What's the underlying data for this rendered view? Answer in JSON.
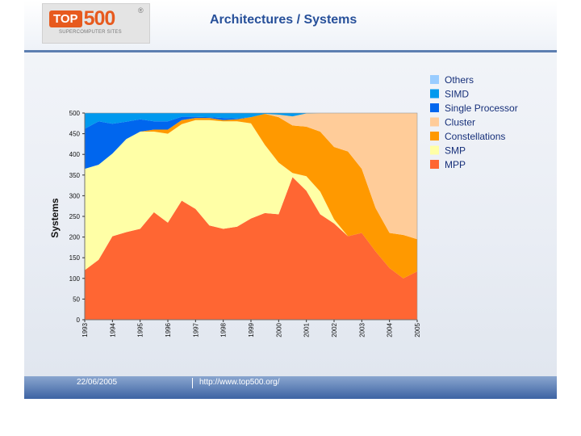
{
  "header": {
    "title": "Architectures / Systems",
    "logo": {
      "word_top": "TOP",
      "word_num": "500",
      "mark": "®",
      "subtitle": "SUPERCOMPUTER SITES"
    }
  },
  "footer": {
    "date": "22/06/2005",
    "url": "http://www.top500.org/"
  },
  "chart_data": {
    "type": "area",
    "stacked": true,
    "title": "",
    "xlabel": "",
    "ylabel": "Systems",
    "ylim": [
      0,
      500
    ],
    "yticks": [
      0,
      50,
      100,
      150,
      200,
      250,
      300,
      350,
      400,
      450,
      500
    ],
    "x": [
      1993.0,
      1993.5,
      1994.0,
      1994.5,
      1995.0,
      1995.5,
      1996.0,
      1996.5,
      1997.0,
      1997.5,
      1998.0,
      1998.5,
      1999.0,
      1999.5,
      2000.0,
      2000.5,
      2001.0,
      2001.5,
      2002.0,
      2002.5,
      2003.0,
      2003.5,
      2004.0,
      2004.5,
      2005.0
    ],
    "xtick_labels": [
      "1993",
      "1994",
      "1995",
      "1996",
      "1997",
      "1998",
      "1999",
      "2000",
      "2001",
      "2002",
      "2003",
      "2004",
      "2005"
    ],
    "legend_position": "top-right",
    "series": [
      {
        "name": "MPP",
        "color": "#ff6633",
        "values": [
          120,
          145,
          202,
          212,
          220,
          260,
          235,
          288,
          268,
          228,
          220,
          225,
          245,
          258,
          255,
          345,
          312,
          255,
          233,
          202,
          210,
          165,
          125,
          100,
          117
        ]
      },
      {
        "name": "SMP",
        "color": "#ffffa6",
        "values": [
          245,
          230,
          200,
          225,
          235,
          195,
          215,
          185,
          215,
          255,
          260,
          255,
          230,
          165,
          125,
          10,
          35,
          55,
          10,
          0,
          0,
          0,
          0,
          0,
          0
        ]
      },
      {
        "name": "Constellations",
        "color": "#ff9900",
        "values": [
          0,
          0,
          0,
          0,
          0,
          5,
          10,
          10,
          5,
          5,
          3,
          5,
          15,
          75,
          110,
          115,
          120,
          145,
          175,
          205,
          155,
          105,
          85,
          105,
          78
        ]
      },
      {
        "name": "Cluster",
        "color": "#ffcc99",
        "values": [
          0,
          0,
          0,
          0,
          0,
          0,
          0,
          0,
          0,
          0,
          0,
          0,
          0,
          0,
          6,
          22,
          32,
          45,
          82,
          93,
          135,
          230,
          290,
          295,
          305
        ]
      },
      {
        "name": "Single Processor",
        "color": "#0066ee",
        "values": [
          97,
          105,
          72,
          42,
          30,
          20,
          20,
          8,
          3,
          2,
          5,
          2,
          0,
          0,
          0,
          0,
          0,
          0,
          0,
          0,
          0,
          0,
          0,
          0,
          0
        ]
      },
      {
        "name": "SIMD",
        "color": "#0099ee",
        "values": [
          38,
          20,
          26,
          21,
          15,
          20,
          20,
          9,
          9,
          10,
          12,
          13,
          10,
          2,
          4,
          8,
          1,
          0,
          0,
          0,
          0,
          0,
          0,
          0,
          0
        ]
      },
      {
        "name": "Others",
        "color": "#99ccff",
        "values": [
          0,
          0,
          0,
          0,
          0,
          0,
          0,
          0,
          0,
          0,
          0,
          0,
          0,
          0,
          0,
          0,
          0,
          0,
          0,
          0,
          0,
          0,
          0,
          0,
          0
        ]
      }
    ],
    "legend_order": [
      "Others",
      "SIMD",
      "Single Processor",
      "Cluster",
      "Constellations",
      "SMP",
      "MPP"
    ]
  }
}
